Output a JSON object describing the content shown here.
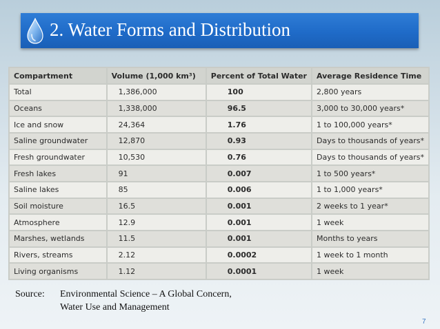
{
  "title": "2. Water Forms and Distribution",
  "icon": "water-drop-icon",
  "colors": {
    "title_bar": "#1f6bc8",
    "page_number": "#3a78c2"
  },
  "table": {
    "headers": [
      "Compartment",
      "Volume (1,000 km³)",
      "Percent of Total Water",
      "Average Residence Time"
    ],
    "rows": [
      [
        "Total",
        "1,386,000",
        "100",
        "2,800 years"
      ],
      [
        "Oceans",
        "1,338,000",
        "96.5",
        "3,000 to 30,000 years*"
      ],
      [
        "Ice and snow",
        "24,364",
        "1.76",
        "1 to 100,000 years*"
      ],
      [
        "Saline groundwater",
        "12,870",
        "0.93",
        "Days to thousands of years*"
      ],
      [
        "Fresh groundwater",
        "10,530",
        "0.76",
        "Days to thousands of years*"
      ],
      [
        "Fresh lakes",
        "91",
        "0.007",
        "1 to 500 years*"
      ],
      [
        "Saline lakes",
        "85",
        "0.006",
        "1 to 1,000 years*"
      ],
      [
        "Soil moisture",
        "16.5",
        "0.001",
        "2 weeks to 1 year*"
      ],
      [
        "Atmosphere",
        "12.9",
        "0.001",
        "1 week"
      ],
      [
        "Marshes, wetlands",
        "11.5",
        "0.001",
        "Months to years"
      ],
      [
        "Rivers, streams",
        "2.12",
        "0.0002",
        "1 week to 1 month"
      ],
      [
        "Living organisms",
        "1.12",
        "0.0001",
        "1 week"
      ]
    ]
  },
  "source": {
    "label": "Source:",
    "line1": "Environmental Science – A Global Concern,",
    "line2": "Water Use and Management"
  },
  "page_number": "7"
}
